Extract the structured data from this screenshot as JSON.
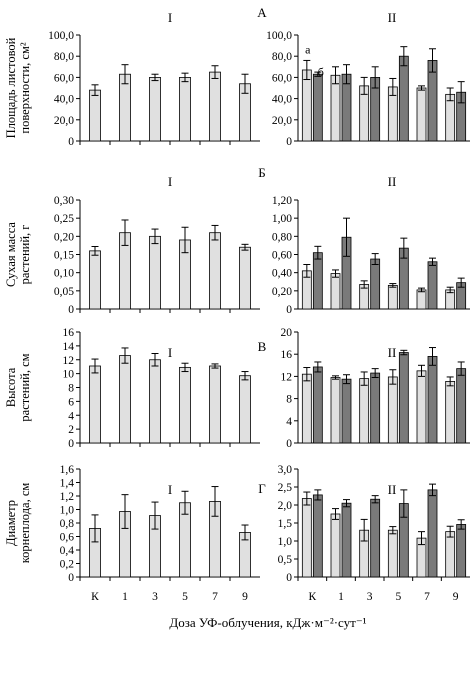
{
  "x_categories": [
    "К",
    "1",
    "3",
    "5",
    "7",
    "9"
  ],
  "x_axis_label": "Доза УФ-облучения, кДж·м⁻²·сут⁻¹",
  "colors": {
    "light": "#e0e0e0",
    "dark": "#7a7a7a",
    "stroke": "#000000"
  },
  "rows": [
    {
      "letter": "А",
      "ylabel_lines": [
        "Площадь листовой",
        "поверхности, см²"
      ],
      "panels": [
        {
          "roman": "I",
          "chart_data": {
            "type": "bar",
            "categories": [
              "К",
              "1",
              "3",
              "5",
              "7",
              "9"
            ],
            "ylim": [
              0,
              100
            ],
            "yticks": [
              0,
              20,
              40,
              60,
              80,
              100
            ],
            "tick_labels": [
              "0",
              "20,0",
              "40,0",
              "60,0",
              "80,0",
              "100,0"
            ],
            "series": [
              {
                "fill": "light",
                "values": [
                  48,
                  63,
                  60,
                  60,
                  65,
                  54
                ],
                "errors": [
                  5,
                  9,
                  3,
                  4,
                  6,
                  9
                ]
              }
            ]
          }
        },
        {
          "roman": "II",
          "annotations": [
            "а",
            "б"
          ],
          "chart_data": {
            "type": "bar",
            "categories": [
              "К",
              "1",
              "3",
              "5",
              "7",
              "9"
            ],
            "ylim": [
              0,
              100
            ],
            "yticks": [
              0,
              20,
              40,
              60,
              80,
              100
            ],
            "tick_labels": [
              "0",
              "20,0",
              "40,0",
              "60,0",
              "80,0",
              "100,0"
            ],
            "series": [
              {
                "fill": "light",
                "values": [
                  67,
                  62,
                  52,
                  51,
                  50,
                  44
                ],
                "errors": [
                  9,
                  8,
                  8,
                  8,
                  2,
                  6
                ]
              },
              {
                "fill": "dark",
                "values": [
                  63,
                  63,
                  60,
                  80,
                  76,
                  46
                ],
                "errors": [
                  2,
                  9,
                  10,
                  9,
                  11,
                  10
                ]
              }
            ]
          }
        }
      ]
    },
    {
      "letter": "Б",
      "ylabel_lines": [
        "Сухая масса",
        "растений, г"
      ],
      "panels": [
        {
          "roman": "I",
          "chart_data": {
            "type": "bar",
            "categories": [
              "К",
              "1",
              "3",
              "5",
              "7",
              "9"
            ],
            "ylim": [
              0,
              0.3
            ],
            "yticks": [
              0,
              0.05,
              0.1,
              0.15,
              0.2,
              0.25,
              0.3
            ],
            "tick_labels": [
              "0",
              "0,05",
              "0,10",
              "0,15",
              "0,20",
              "0,25",
              "0,30"
            ],
            "series": [
              {
                "fill": "light",
                "values": [
                  0.16,
                  0.21,
                  0.2,
                  0.19,
                  0.21,
                  0.17
                ],
                "errors": [
                  0.012,
                  0.035,
                  0.02,
                  0.035,
                  0.02,
                  0.008
                ]
              }
            ]
          }
        },
        {
          "roman": "II",
          "chart_data": {
            "type": "bar",
            "categories": [
              "К",
              "1",
              "3",
              "5",
              "7",
              "9"
            ],
            "ylim": [
              0,
              1.2
            ],
            "yticks": [
              0,
              0.2,
              0.4,
              0.6,
              0.8,
              1.0,
              1.2
            ],
            "tick_labels": [
              "0",
              "0,20",
              "0,40",
              "0,60",
              "0,80",
              "1,00",
              "1,20"
            ],
            "series": [
              {
                "fill": "light",
                "values": [
                  0.42,
                  0.39,
                  0.27,
                  0.26,
                  0.21,
                  0.21
                ],
                "errors": [
                  0.07,
                  0.04,
                  0.04,
                  0.02,
                  0.02,
                  0.03
                ]
              },
              {
                "fill": "dark",
                "values": [
                  0.62,
                  0.79,
                  0.55,
                  0.67,
                  0.52,
                  0.29
                ],
                "errors": [
                  0.07,
                  0.21,
                  0.06,
                  0.11,
                  0.04,
                  0.05
                ]
              }
            ]
          }
        }
      ]
    },
    {
      "letter": "В",
      "ylabel_lines": [
        "Высота",
        "растений, см"
      ],
      "panels": [
        {
          "roman": "I",
          "chart_data": {
            "type": "bar",
            "categories": [
              "К",
              "1",
              "3",
              "5",
              "7",
              "9"
            ],
            "ylim": [
              0,
              16
            ],
            "yticks": [
              0,
              2,
              4,
              6,
              8,
              10,
              12,
              14,
              16
            ],
            "tick_labels": [
              "0",
              "2",
              "4",
              "6",
              "8",
              "10",
              "12",
              "14",
              "16"
            ],
            "series": [
              {
                "fill": "light",
                "values": [
                  11.1,
                  12.6,
                  12.0,
                  10.9,
                  11.1,
                  9.7
                ],
                "errors": [
                  1.0,
                  1.1,
                  0.9,
                  0.6,
                  0.3,
                  0.6
                ]
              }
            ]
          }
        },
        {
          "roman": "II",
          "chart_data": {
            "type": "bar",
            "categories": [
              "К",
              "1",
              "3",
              "5",
              "7",
              "9"
            ],
            "ylim": [
              0,
              20
            ],
            "yticks": [
              0,
              4,
              8,
              12,
              16,
              20
            ],
            "tick_labels": [
              "0",
              "4",
              "8",
              "12",
              "16",
              "20"
            ],
            "series": [
              {
                "fill": "light",
                "values": [
                  12.4,
                  11.8,
                  11.6,
                  11.9,
                  13.0,
                  11.1
                ],
                "errors": [
                  1.2,
                  0.3,
                  1.2,
                  1.3,
                  1.0,
                  0.8
                ]
              },
              {
                "fill": "dark",
                "values": [
                  13.7,
                  11.5,
                  12.6,
                  16.3,
                  15.6,
                  13.4
                ],
                "errors": [
                  0.9,
                  0.8,
                  0.8,
                  0.4,
                  1.6,
                  1.2
                ]
              }
            ]
          }
        }
      ]
    },
    {
      "letter": "Г",
      "ylabel_lines": [
        "Диаметр",
        "корнеплода, см"
      ],
      "panels": [
        {
          "roman": "I",
          "chart_data": {
            "type": "bar",
            "categories": [
              "К",
              "1",
              "3",
              "5",
              "7",
              "9"
            ],
            "ylim": [
              0,
              1.6
            ],
            "yticks": [
              0,
              0.2,
              0.4,
              0.6,
              0.8,
              1.0,
              1.2,
              1.4,
              1.6
            ],
            "tick_labels": [
              "0",
              "0,2",
              "0,4",
              "0,6",
              "0,8",
              "1,0",
              "1,2",
              "1,4",
              "1,6"
            ],
            "series": [
              {
                "fill": "light",
                "values": [
                  0.72,
                  0.97,
                  0.91,
                  1.1,
                  1.12,
                  0.66
                ],
                "errors": [
                  0.2,
                  0.25,
                  0.2,
                  0.17,
                  0.22,
                  0.11
                ]
              }
            ]
          }
        },
        {
          "roman": "II",
          "chart_data": {
            "type": "bar",
            "categories": [
              "К",
              "1",
              "3",
              "5",
              "7",
              "9"
            ],
            "ylim": [
              0,
              3.0
            ],
            "yticks": [
              0,
              0.5,
              1.0,
              1.5,
              2.0,
              2.5,
              3.0
            ],
            "tick_labels": [
              "0",
              "0,5",
              "1,0",
              "1,5",
              "2,0",
              "2,5",
              "3,0"
            ],
            "series": [
              {
                "fill": "light",
                "values": [
                  2.18,
                  1.75,
                  1.3,
                  1.3,
                  1.08,
                  1.26
                ],
                "errors": [
                  0.18,
                  0.15,
                  0.3,
                  0.1,
                  0.18,
                  0.15
                ]
              },
              {
                "fill": "dark",
                "values": [
                  2.28,
                  2.05,
                  2.16,
                  2.04,
                  2.42,
                  1.46
                ],
                "errors": [
                  0.14,
                  0.1,
                  0.1,
                  0.38,
                  0.16,
                  0.13
                ]
              }
            ]
          }
        }
      ]
    }
  ]
}
